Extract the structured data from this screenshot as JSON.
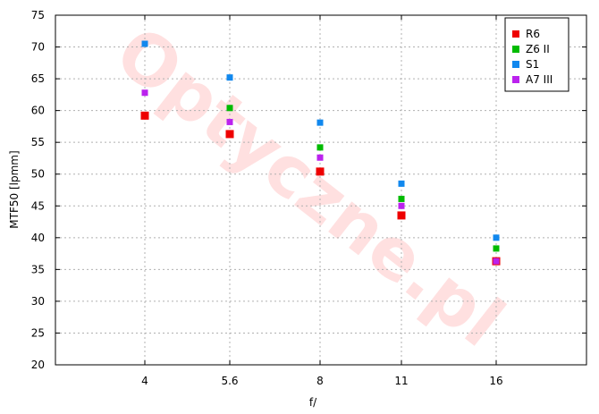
{
  "watermark": "Optyczne.pl",
  "chart_data": {
    "type": "scatter",
    "title": "",
    "xlabel": "f/",
    "ylabel": "MTF50 [lpmm]",
    "ylim": [
      20,
      75
    ],
    "yticks": [
      20,
      25,
      30,
      35,
      40,
      45,
      50,
      55,
      60,
      65,
      70,
      75
    ],
    "categories": [
      "4",
      "5.6",
      "8",
      "11",
      "16"
    ],
    "grid": true,
    "legend_position": "top-right",
    "series": [
      {
        "name": "R6",
        "color": "#ee0000",
        "values": [
          59.2,
          56.3,
          50.4,
          43.5,
          36.3
        ]
      },
      {
        "name": "Z6 II",
        "color": "#00bb00",
        "values": [
          null,
          60.4,
          54.2,
          46.1,
          38.3
        ]
      },
      {
        "name": "S1",
        "color": "#1188ee",
        "values": [
          70.5,
          65.2,
          58.1,
          48.5,
          40.0
        ]
      },
      {
        "name": "A7 III",
        "color": "#bb22ee",
        "values": [
          62.8,
          58.2,
          52.6,
          45.0,
          36.3
        ]
      }
    ]
  }
}
